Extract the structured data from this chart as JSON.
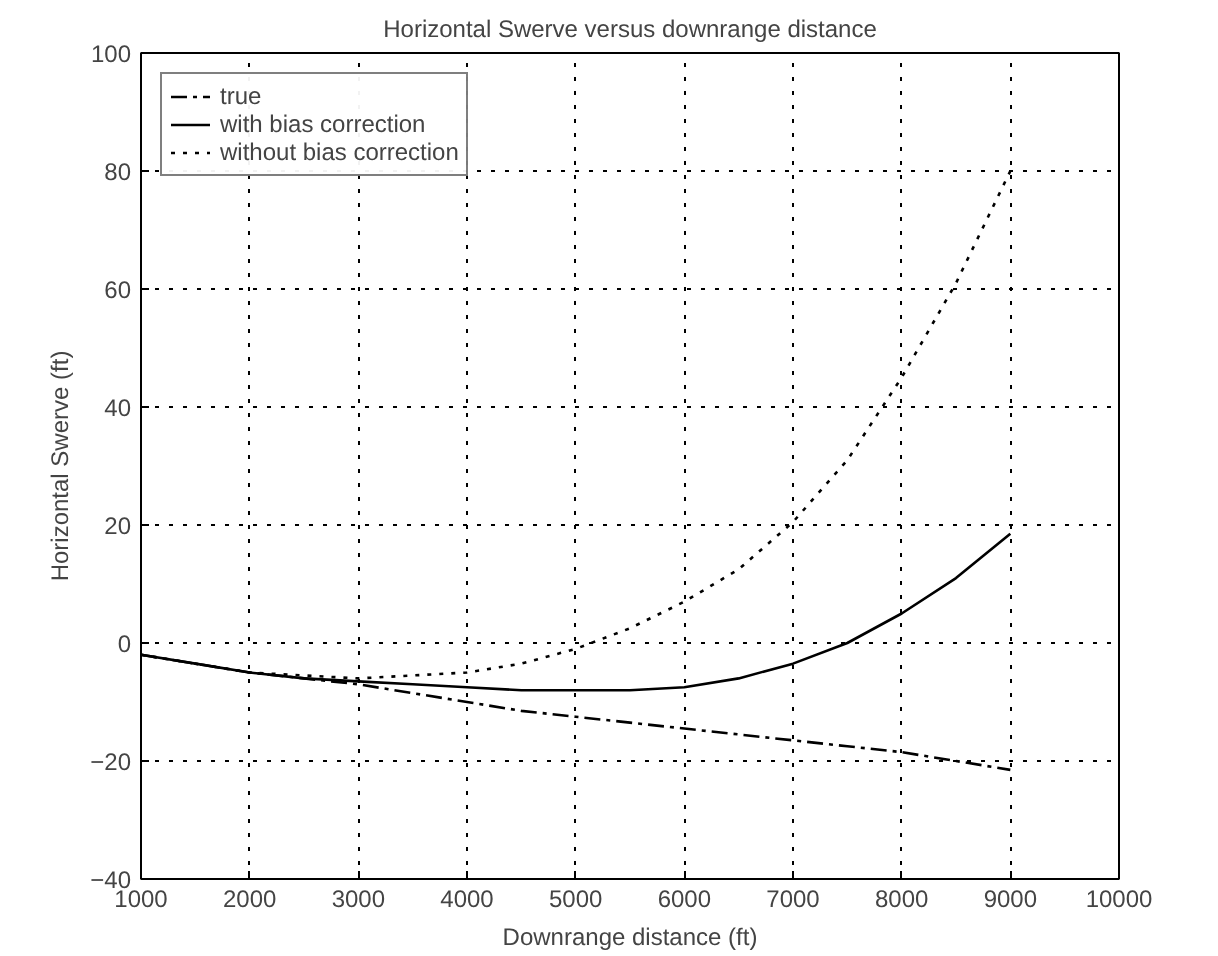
{
  "chart_data": {
    "type": "line",
    "title": "Horizontal Swerve versus downrange distance",
    "xlabel": "Downrange distance (ft)",
    "ylabel": "Horizontal Swerve (ft)",
    "x": [
      1000,
      1500,
      2000,
      2500,
      3000,
      3500,
      4000,
      4500,
      5000,
      5500,
      6000,
      6500,
      7000,
      7500,
      8000,
      8500,
      9000
    ],
    "series": [
      {
        "name": "true",
        "color": "#000000",
        "line_style": "dashdot",
        "values": [
          -2,
          -3.5,
          -5,
          -6,
          -7,
          -8.5,
          -10,
          -11.5,
          -12.5,
          -13.5,
          -14.5,
          -15.5,
          -16.5,
          -17.5,
          -18.5,
          -20,
          -21.5
        ]
      },
      {
        "name": "with bias correction",
        "color": "#000000",
        "line_style": "solid",
        "values": [
          -2,
          -3.5,
          -5,
          -6,
          -6.5,
          -7,
          -7.5,
          -8,
          -8,
          -8,
          -7.5,
          -6,
          -3.5,
          0,
          5,
          11,
          18.5
        ]
      },
      {
        "name": "without bias correction",
        "color": "#000000",
        "line_style": "dotted",
        "values": [
          -2,
          -3.5,
          -5,
          -5.5,
          -6,
          -5.5,
          -5,
          -3.5,
          -1,
          2.5,
          7,
          12.5,
          20.5,
          31,
          45,
          61,
          80
        ]
      }
    ],
    "xlim": [
      1000,
      10000
    ],
    "ylim": [
      -40,
      100
    ],
    "xticks": [
      1000,
      2000,
      3000,
      4000,
      5000,
      6000,
      7000,
      8000,
      9000,
      10000
    ],
    "yticks": [
      -40,
      -20,
      0,
      20,
      40,
      60,
      80,
      100
    ],
    "grid": true,
    "legend": "top left"
  }
}
